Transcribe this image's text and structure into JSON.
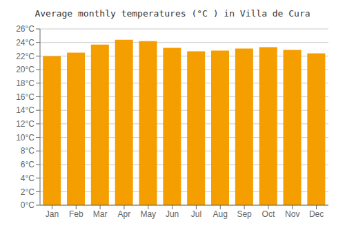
{
  "chart_data": {
    "type": "bar",
    "title": "Average monthly temperatures (°C ) in Villa de Cura",
    "categories": [
      "Jan",
      "Feb",
      "Mar",
      "Apr",
      "May",
      "Jun",
      "Jul",
      "Aug",
      "Sep",
      "Oct",
      "Nov",
      "Dec"
    ],
    "values": [
      22.0,
      22.5,
      23.7,
      24.4,
      24.2,
      23.2,
      22.7,
      22.8,
      23.1,
      23.3,
      22.9,
      22.4
    ],
    "color": "#F59E00",
    "ylim": [
      0,
      26
    ],
    "yticks": [
      {
        "value": 0,
        "label": "0°C"
      },
      {
        "value": 2,
        "label": "2°C"
      },
      {
        "value": 4,
        "label": "4°C"
      },
      {
        "value": 6,
        "label": "6°C"
      },
      {
        "value": 8,
        "label": "8°C"
      },
      {
        "value": 10,
        "label": "10°C"
      },
      {
        "value": 12,
        "label": "12°C"
      },
      {
        "value": 14,
        "label": "14°C"
      },
      {
        "value": 16,
        "label": "16°C"
      },
      {
        "value": 18,
        "label": "18°C"
      },
      {
        "value": 20,
        "label": "20°C"
      },
      {
        "value": 22,
        "label": "22°C"
      },
      {
        "value": 24,
        "label": "24°C"
      },
      {
        "value": 26,
        "label": "26°C"
      }
    ],
    "grid": true
  }
}
